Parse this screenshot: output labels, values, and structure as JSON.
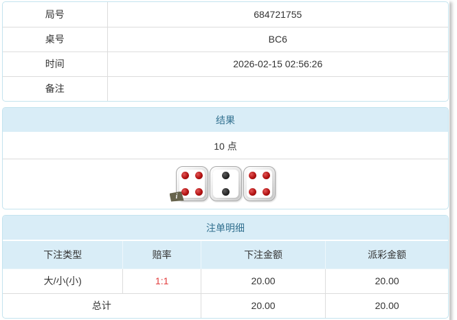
{
  "info_table": {
    "rows": [
      {
        "label": "局号",
        "value": "684721755"
      },
      {
        "label": "桌号",
        "value": "BC6"
      },
      {
        "label": "时间",
        "value": "2026-02-15 02:56:26"
      },
      {
        "label": "备注",
        "value": ""
      }
    ]
  },
  "result_panel": {
    "title": "结果",
    "points": "10 点",
    "dice": [
      {
        "value": 4,
        "color": "red"
      },
      {
        "value": 2,
        "color": "black"
      },
      {
        "value": 4,
        "color": "red"
      }
    ],
    "info_badge": "i"
  },
  "bets_panel": {
    "title": "注单明细",
    "columns": [
      "下注类型",
      "赔率",
      "下注金额",
      "派彩金额"
    ],
    "rows": [
      {
        "bet_type": "大/小(小)",
        "odds": "1:1",
        "bet_amount": "20.00",
        "payout_amount": "20.00"
      }
    ],
    "total": {
      "label": "总计",
      "bet_amount": "20.00",
      "payout_amount": "20.00"
    }
  },
  "colors": {
    "panel_border": "#c3e3ee",
    "header_bg": "#d9edf7",
    "header_text": "#31708f",
    "row_divider": "#dcdcdc",
    "body_text": "#333333",
    "odds_red": "#e23b3b",
    "dice_pip_red": "#b21212",
    "dice_pip_black": "#1c1c1c"
  }
}
